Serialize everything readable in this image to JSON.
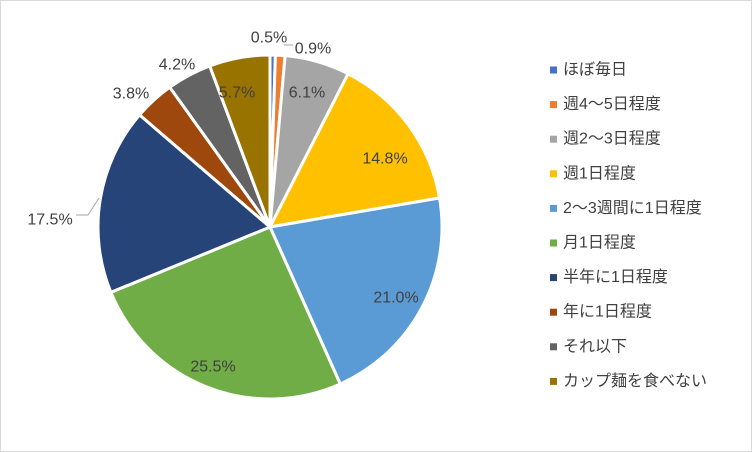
{
  "chart_data": {
    "type": "pie",
    "title": "",
    "legend_position": "right",
    "start_angle_deg": 0,
    "direction": "clockwise",
    "slices": [
      {
        "label": "ほぼ毎日",
        "value": 0.5,
        "data_label": "0.5%",
        "color": "#4472c4"
      },
      {
        "label": "週4〜5日程度",
        "value": 0.9,
        "data_label": "0.9%",
        "color": "#ed7d31"
      },
      {
        "label": "週2〜3日程度",
        "value": 6.1,
        "data_label": "6.1%",
        "color": "#a5a5a5"
      },
      {
        "label": "週1日程度",
        "value": 14.8,
        "data_label": "14.8%",
        "color": "#ffc000"
      },
      {
        "label": "2〜3週間に1日程度",
        "value": 21.0,
        "data_label": "21.0%",
        "color": "#5b9bd5"
      },
      {
        "label": "月1日程度",
        "value": 25.5,
        "data_label": "25.5%",
        "color": "#70ad47"
      },
      {
        "label": "半年に1日程度",
        "value": 17.5,
        "data_label": "17.5%",
        "color": "#264478"
      },
      {
        "label": "年に1日程度",
        "value": 3.8,
        "data_label": "3.8%",
        "color": "#9e480e"
      },
      {
        "label": "それ以下",
        "value": 4.2,
        "data_label": "4.2%",
        "color": "#636363"
      },
      {
        "label": "カップ麺を食べない",
        "value": 5.7,
        "data_label": "5.7%",
        "color": "#997300"
      }
    ]
  }
}
